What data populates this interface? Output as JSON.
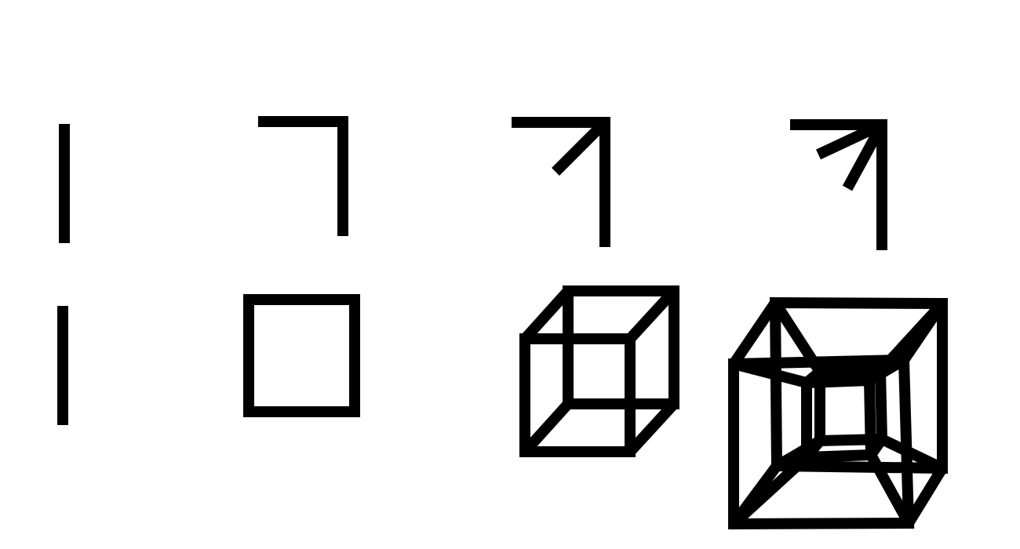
{
  "diagram": {
    "stroke_color": "#000000",
    "background_color": "#ffffff",
    "rows": [
      {
        "name": "direction-vectors",
        "figures": [
          {
            "dimension": 1,
            "shape": "line-segment",
            "edges": 1
          },
          {
            "dimension": 2,
            "shape": "two-perpendicular-directions",
            "edges": 2
          },
          {
            "dimension": 3,
            "shape": "three-perpendicular-directions",
            "edges": 3
          },
          {
            "dimension": 4,
            "shape": "four-perpendicular-directions",
            "edges": 4
          }
        ]
      },
      {
        "name": "hypercubes",
        "figures": [
          {
            "dimension": 1,
            "shape": "line-segment",
            "vertices": 2,
            "edges": 1
          },
          {
            "dimension": 2,
            "shape": "square",
            "vertices": 4,
            "edges": 4
          },
          {
            "dimension": 3,
            "shape": "cube",
            "vertices": 8,
            "edges": 12
          },
          {
            "dimension": 4,
            "shape": "tesseract",
            "vertices": 16,
            "edges": 32
          }
        ]
      }
    ]
  }
}
